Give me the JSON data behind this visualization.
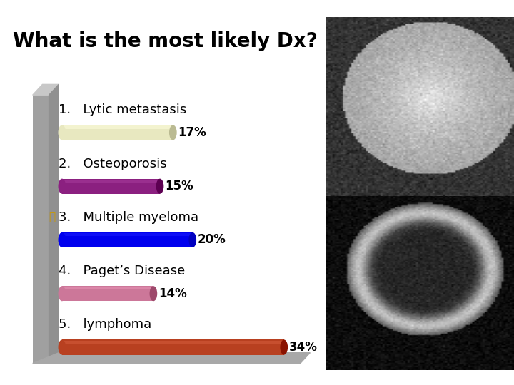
{
  "title": "What is the most likely Dx?",
  "title_fontsize": 20,
  "background_color": "#ffffff",
  "top_bar_color": "#c8922a",
  "bottom_bar_color": "#4b0082",
  "options": [
    {
      "number": "1.",
      "label": "Lytic metastasis",
      "value": 17,
      "color": "#e8e8c0",
      "correct": false
    },
    {
      "number": "2.",
      "label": "Osteoporosis",
      "value": 15,
      "color": "#8b2080",
      "correct": false
    },
    {
      "number": "3.",
      "label": "Multiple myeloma",
      "value": 20,
      "color": "#0000ee",
      "correct": true
    },
    {
      "number": "4.",
      "label": "Paget’s Disease",
      "value": 14,
      "color": "#cc7799",
      "correct": false
    },
    {
      "number": "5.",
      "label": "lymphoma",
      "value": 34,
      "color": "#b84020",
      "correct": false
    }
  ],
  "max_value": 34,
  "label_fontsize": 13,
  "pct_fontsize": 12,
  "wall_color": "#a0a0a0",
  "wall_shadow": "#888888"
}
